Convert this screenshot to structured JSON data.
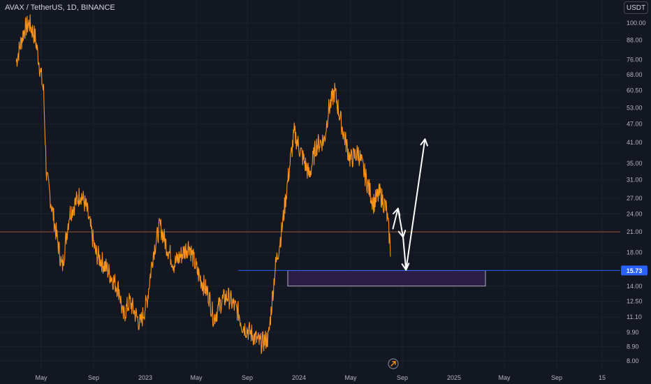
{
  "header": {
    "symbol_title": "AVAX / TetherUS, 1D, BINANCE"
  },
  "toolbar": {
    "currency_label": "USDT"
  },
  "colors": {
    "background": "#131722",
    "price_line": "#f7931a",
    "current_price_line": "#8c5a2a",
    "support_line": "#2962ff",
    "support_zone_fill": "#2a1e45",
    "support_zone_stroke": "#d1d4dc",
    "arrow": "#ffffff",
    "price_badge": "#2962ff"
  },
  "chart_data": {
    "type": "line",
    "title": "AVAX / TetherUS, 1D, BINANCE",
    "y_scale": "log",
    "y_ticks": [
      100.0,
      88.0,
      76.0,
      68.0,
      60.5,
      53.0,
      47.0,
      41.0,
      35.0,
      31.0,
      27.0,
      24.0,
      21.0,
      18.0,
      15.73,
      14.0,
      12.5,
      11.1,
      9.9,
      8.9,
      8.0
    ],
    "x_ticks": [
      "May",
      "Sep",
      "2023",
      "May",
      "Sep",
      "2024",
      "May",
      "Sep",
      "2025",
      "May",
      "Sep",
      "15"
    ],
    "ylim": [
      7.6,
      115
    ],
    "price_series": {
      "name": "AVAX/USDT",
      "x": [
        "2022-03-01",
        "2022-03-20",
        "2022-04-01",
        "2022-04-15",
        "2022-05-05",
        "2022-05-12",
        "2022-06-01",
        "2022-06-18",
        "2022-07-05",
        "2022-08-01",
        "2022-08-15",
        "2022-09-05",
        "2022-10-01",
        "2022-11-01",
        "2022-11-09",
        "2022-11-25",
        "2022-12-20",
        "2023-01-05",
        "2023-01-20",
        "2023-02-05",
        "2023-02-20",
        "2023-03-10",
        "2023-04-01",
        "2023-04-15",
        "2023-05-05",
        "2023-06-01",
        "2023-06-12",
        "2023-07-01",
        "2023-07-15",
        "2023-08-10",
        "2023-08-18",
        "2023-09-10",
        "2023-10-01",
        "2023-10-20",
        "2023-11-05",
        "2023-11-20",
        "2023-12-10",
        "2023-12-20",
        "2024-01-05",
        "2024-01-25",
        "2024-02-10",
        "2024-03-01",
        "2024-03-10",
        "2024-03-25",
        "2024-04-13",
        "2024-05-01",
        "2024-05-20",
        "2024-06-05",
        "2024-06-25",
        "2024-07-10",
        "2024-07-25",
        "2024-08-02",
        "2024-08-05"
      ],
      "y": [
        75,
        95,
        100,
        90,
        60,
        32,
        22,
        16,
        24,
        28,
        25,
        18,
        16,
        13.5,
        11.1,
        12.5,
        10.5,
        12.5,
        18,
        22,
        19,
        16.5,
        18,
        19,
        15.5,
        13,
        11,
        12.5,
        13,
        11.5,
        10.5,
        9.8,
        9.1,
        9.5,
        16,
        21,
        35,
        44,
        38,
        32,
        40,
        42,
        52,
        60,
        45,
        36,
        38,
        32,
        26,
        28,
        25,
        20,
        17.5
      ]
    },
    "current_price": 21.0,
    "support_price": 15.73,
    "support_zone": {
      "low": 14.0,
      "high": 15.73,
      "x_start": "2023-12-01",
      "x_end": "2025-03-15"
    },
    "projection_path": [
      {
        "x": "2024-08-10",
        "y": 21.5
      },
      {
        "x": "2024-08-22",
        "y": 25.0
      },
      {
        "x": "2024-09-03",
        "y": 20.2
      },
      {
        "x": "2024-09-10",
        "y": 15.8
      },
      {
        "x": "2024-10-25",
        "y": 42.0
      }
    ]
  }
}
